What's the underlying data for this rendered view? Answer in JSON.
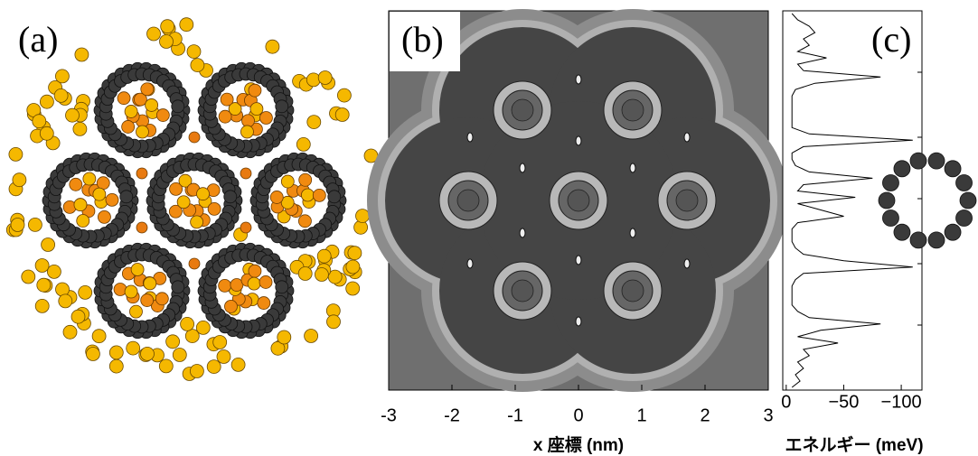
{
  "chart_data": [
    {
      "type": "image",
      "panel_label": "(b)",
      "xlabel": "x 座標 (nm)",
      "xlim": [
        -3,
        3
      ],
      "xticks": [
        -3,
        -2,
        -1,
        0,
        1,
        2,
        3
      ]
    },
    {
      "type": "line",
      "panel_label": "(c)",
      "xlabel": "エネルギー (meV)",
      "xlim": [
        3,
        -118
      ],
      "xticks": [
        0,
        {
          "value": -50,
          "label": "−50"
        },
        {
          "value": -100,
          "label": "−100"
        }
      ],
      "values": [
        -5,
        -10,
        -20,
        -25,
        -15,
        -20,
        -10,
        -35,
        -10,
        -15,
        -82,
        -25,
        -8,
        -5,
        -5,
        -5,
        -5,
        -5,
        -5,
        -20,
        -110,
        -15,
        -5,
        -5,
        -8,
        -20,
        -75,
        -15,
        -10,
        -60,
        -10,
        -30,
        -50,
        -10,
        -5,
        -5,
        -5,
        -8,
        -15,
        -50,
        -110,
        -15,
        -8,
        -5,
        -5,
        -5,
        -5,
        -10,
        -20,
        -82,
        -30,
        -10,
        -45,
        -15,
        -20,
        -10,
        -15,
        -8,
        -12,
        -5
      ]
    }
  ],
  "panel_a_label": "(a)"
}
